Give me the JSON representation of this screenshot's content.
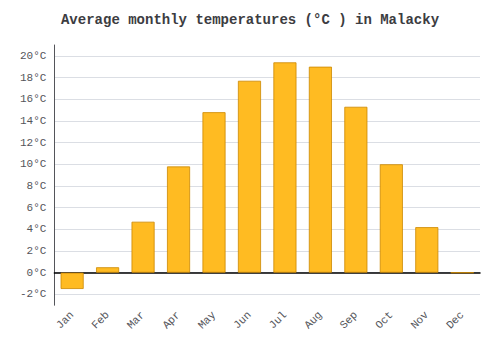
{
  "chart_data": {
    "type": "bar",
    "title": "Average monthly temperatures (°C ) in Malacky",
    "categories": [
      "Jan",
      "Feb",
      "Mar",
      "Apr",
      "May",
      "Jun",
      "Jul",
      "Aug",
      "Sep",
      "Oct",
      "Nov",
      "Dec"
    ],
    "values": [
      -1.5,
      0.5,
      4.7,
      9.8,
      14.8,
      17.7,
      19.4,
      19.0,
      15.3,
      10.0,
      4.2,
      0.0
    ],
    "color": "#FFBB22",
    "ylim": [
      -3,
      21
    ],
    "yticks": [
      {
        "value": -2,
        "label": "-2°C"
      },
      {
        "value": 0,
        "label": "0°C"
      },
      {
        "value": 2,
        "label": "2°C"
      },
      {
        "value": 4,
        "label": "4°C"
      },
      {
        "value": 6,
        "label": "6°C"
      },
      {
        "value": 8,
        "label": "8°C"
      },
      {
        "value": 10,
        "label": "10°C"
      },
      {
        "value": 12,
        "label": "12°C"
      },
      {
        "value": 14,
        "label": "14°C"
      },
      {
        "value": 16,
        "label": "16°C"
      },
      {
        "value": 18,
        "label": "18°C"
      },
      {
        "value": 20,
        "label": "20°C"
      }
    ],
    "grid": true
  }
}
